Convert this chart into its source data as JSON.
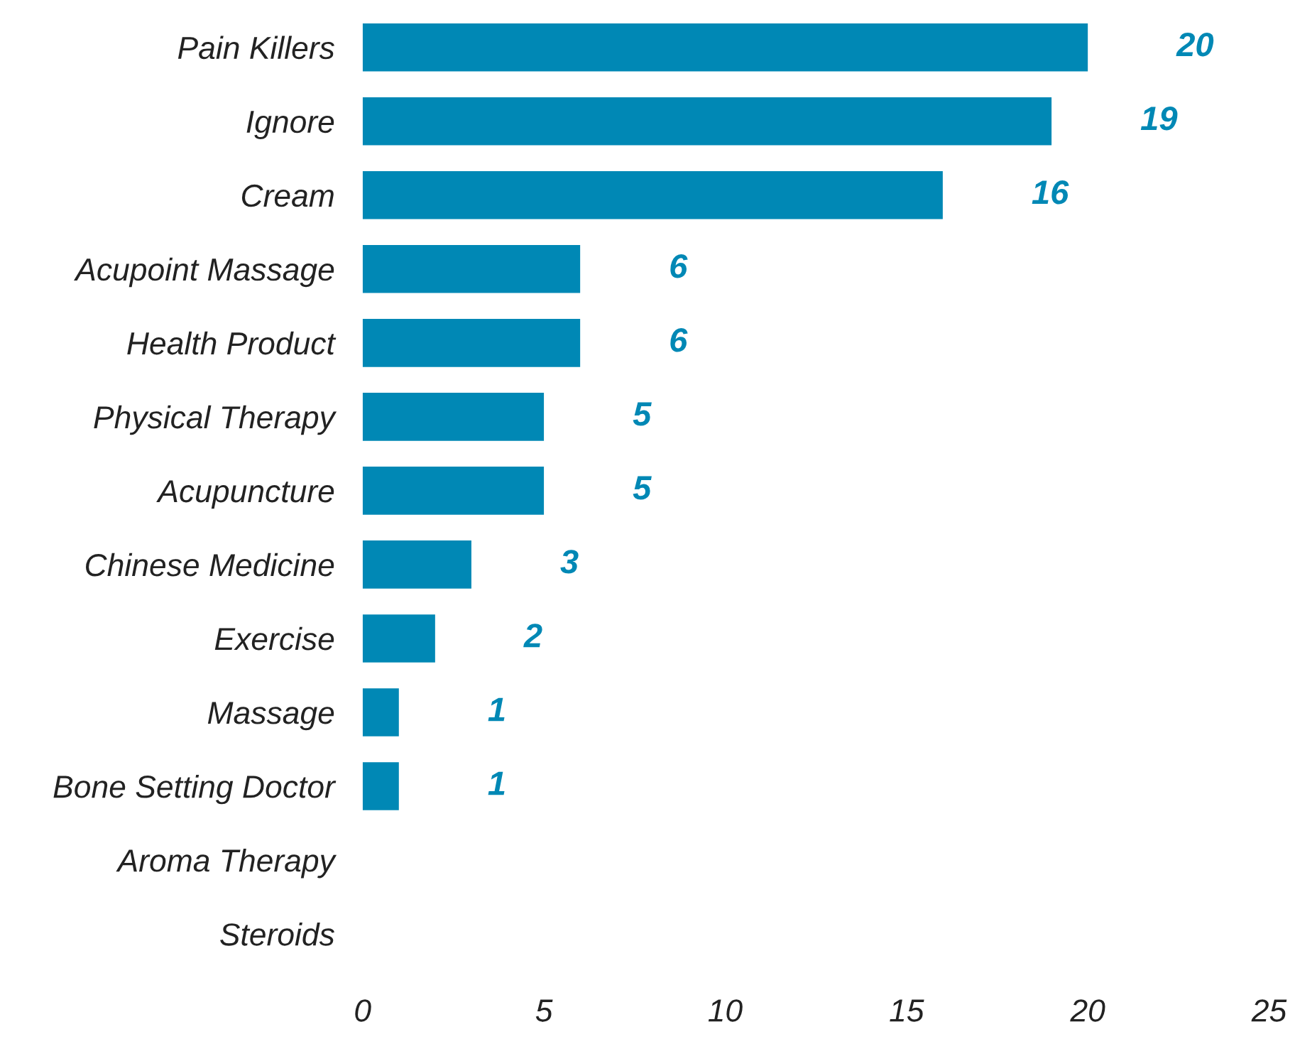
{
  "chart_data": {
    "type": "bar",
    "orientation": "horizontal",
    "categories": [
      "Pain Killers",
      "Ignore",
      "Cream",
      "Acupoint Massage",
      "Health Product",
      "Physical Therapy",
      "Acupuncture",
      "Chinese Medicine",
      "Exercise",
      "Massage",
      "Bone Setting Doctor",
      "Aroma Therapy",
      "Steroids"
    ],
    "values": [
      20,
      19,
      16,
      6,
      6,
      5,
      5,
      3,
      2,
      1,
      1,
      0,
      0
    ],
    "value_labels": [
      "20",
      "19",
      "16",
      "6",
      "6",
      "5",
      "5",
      "3",
      "2",
      "1",
      "1",
      null,
      null
    ],
    "color": "#0088b5",
    "xlim": [
      0,
      25
    ],
    "xticks": [
      0,
      5,
      10,
      15,
      20,
      25
    ],
    "grid": false
  }
}
